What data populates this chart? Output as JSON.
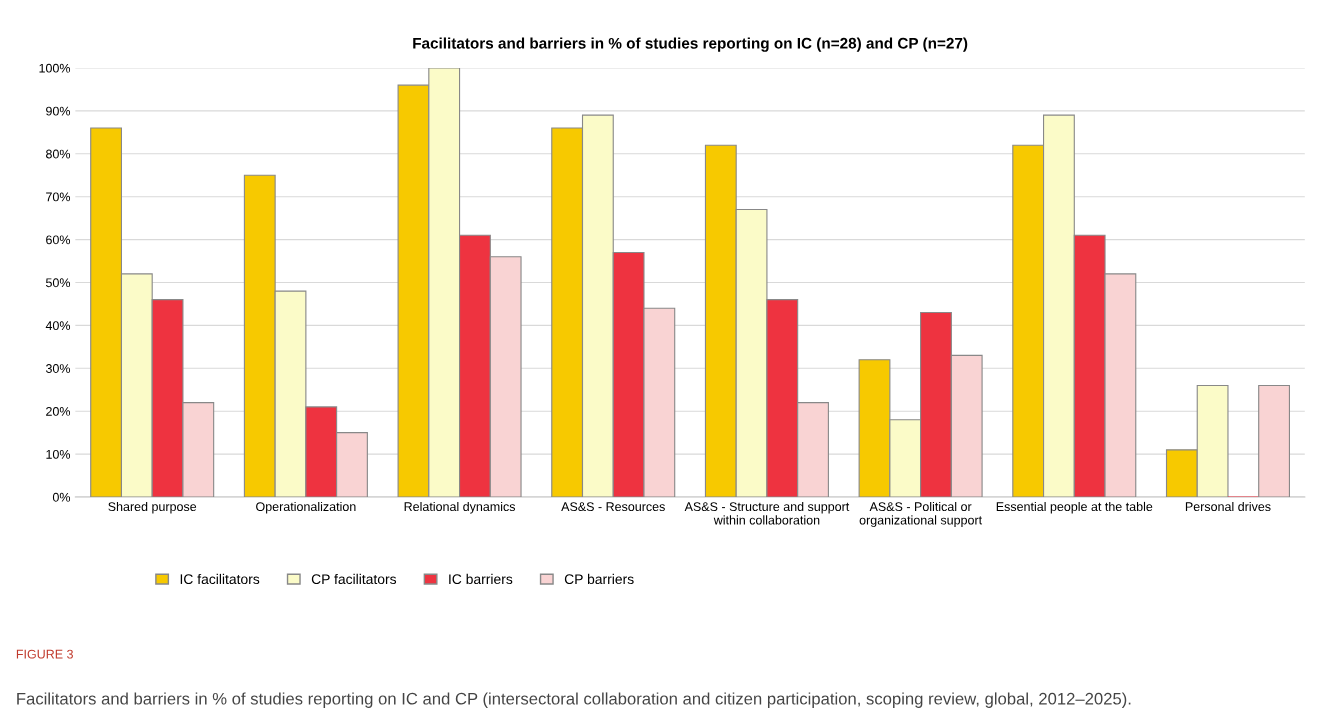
{
  "chart_data": {
    "type": "bar",
    "title": "Facilitators and barriers in % of studies reporting on IC (n=28) and CP (n=27)",
    "categories": [
      "Shared purpose",
      "Operationalization",
      "Relational dynamics",
      "AS&S - Resources",
      "AS&S - Structure and support\nwithin collaboration",
      "AS&S - Political or\norganizational support",
      "Essential people at the table",
      "Personal drives"
    ],
    "series": [
      {
        "name": "IC facilitators",
        "color": "#f7c900",
        "values": [
          86,
          75,
          96,
          86,
          82,
          32,
          82,
          11
        ]
      },
      {
        "name": "CP facilitators",
        "color": "#fbfbc8",
        "values": [
          52,
          48,
          100,
          89,
          67,
          18,
          89,
          26
        ]
      },
      {
        "name": "IC barriers",
        "color": "#ee3340",
        "values": [
          46,
          21,
          61,
          57,
          46,
          43,
          61,
          0
        ]
      },
      {
        "name": "CP barriers",
        "color": "#f9d3d3",
        "values": [
          22,
          15,
          56,
          44,
          22,
          33,
          52,
          26
        ]
      }
    ],
    "ylim": [
      0,
      100
    ],
    "yticks": [
      {
        "value": 0,
        "label": "0%"
      },
      {
        "value": 10,
        "label": "10%"
      },
      {
        "value": 20,
        "label": "20%"
      },
      {
        "value": 30,
        "label": "30%"
      },
      {
        "value": 40,
        "label": "40%"
      },
      {
        "value": 50,
        "label": "50%"
      },
      {
        "value": 60,
        "label": "60%"
      },
      {
        "value": 70,
        "label": "70%"
      },
      {
        "value": 80,
        "label": "80%"
      },
      {
        "value": 90,
        "label": "90%"
      },
      {
        "value": 100,
        "label": "100%"
      }
    ],
    "grid": "y",
    "legend": "bottom",
    "annotations": [
      "FIGURE 3",
      "Facilitators and barriers in % of studies reporting on IC and CP (intersectoral collaboration and citizen participation, scoping review, global, 2012–2025)."
    ]
  }
}
